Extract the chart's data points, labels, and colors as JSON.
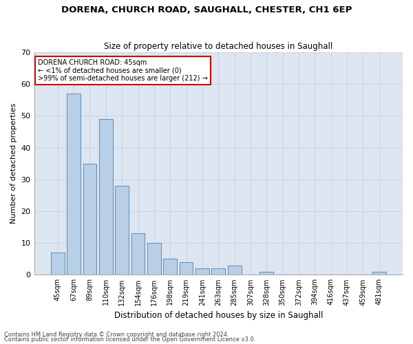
{
  "title1": "DORENA, CHURCH ROAD, SAUGHALL, CHESTER, CH1 6EP",
  "title2": "Size of property relative to detached houses in Saughall",
  "xlabel": "Distribution of detached houses by size in Saughall",
  "ylabel": "Number of detached properties",
  "categories": [
    "45sqm",
    "67sqm",
    "89sqm",
    "110sqm",
    "132sqm",
    "154sqm",
    "176sqm",
    "198sqm",
    "219sqm",
    "241sqm",
    "263sqm",
    "285sqm",
    "307sqm",
    "328sqm",
    "350sqm",
    "372sqm",
    "394sqm",
    "416sqm",
    "437sqm",
    "459sqm",
    "481sqm"
  ],
  "values": [
    7,
    57,
    35,
    49,
    28,
    13,
    10,
    5,
    4,
    2,
    2,
    3,
    0,
    1,
    0,
    0,
    0,
    0,
    0,
    0,
    1
  ],
  "bar_color": "#b8cfe8",
  "bar_edge_color": "#5b8db8",
  "annotation_title": "DORENA CHURCH ROAD: 45sqm",
  "annotation_line1": "← <1% of detached houses are smaller (0)",
  "annotation_line2": ">99% of semi-detached houses are larger (212) →",
  "annotation_box_color": "#ffffff",
  "annotation_box_edge": "#cc0000",
  "ylim": [
    0,
    70
  ],
  "yticks": [
    0,
    10,
    20,
    30,
    40,
    50,
    60,
    70
  ],
  "grid_color": "#c8d4e8",
  "bg_color": "#dde5f0",
  "footer1": "Contains HM Land Registry data © Crown copyright and database right 2024.",
  "footer2": "Contains public sector information licensed under the Open Government Licence v3.0."
}
